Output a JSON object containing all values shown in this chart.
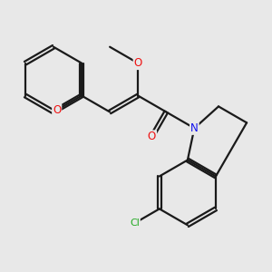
{
  "bg_color": "#e8e8e8",
  "bond_color": "#1a1a1a",
  "bond_width": 1.6,
  "dbo": 0.055,
  "atom_colors": {
    "O": "#ee1111",
    "N": "#1111ee",
    "Cl": "#22aa22"
  },
  "font_size_atom": 8.5,
  "font_size_cl": 8.0
}
